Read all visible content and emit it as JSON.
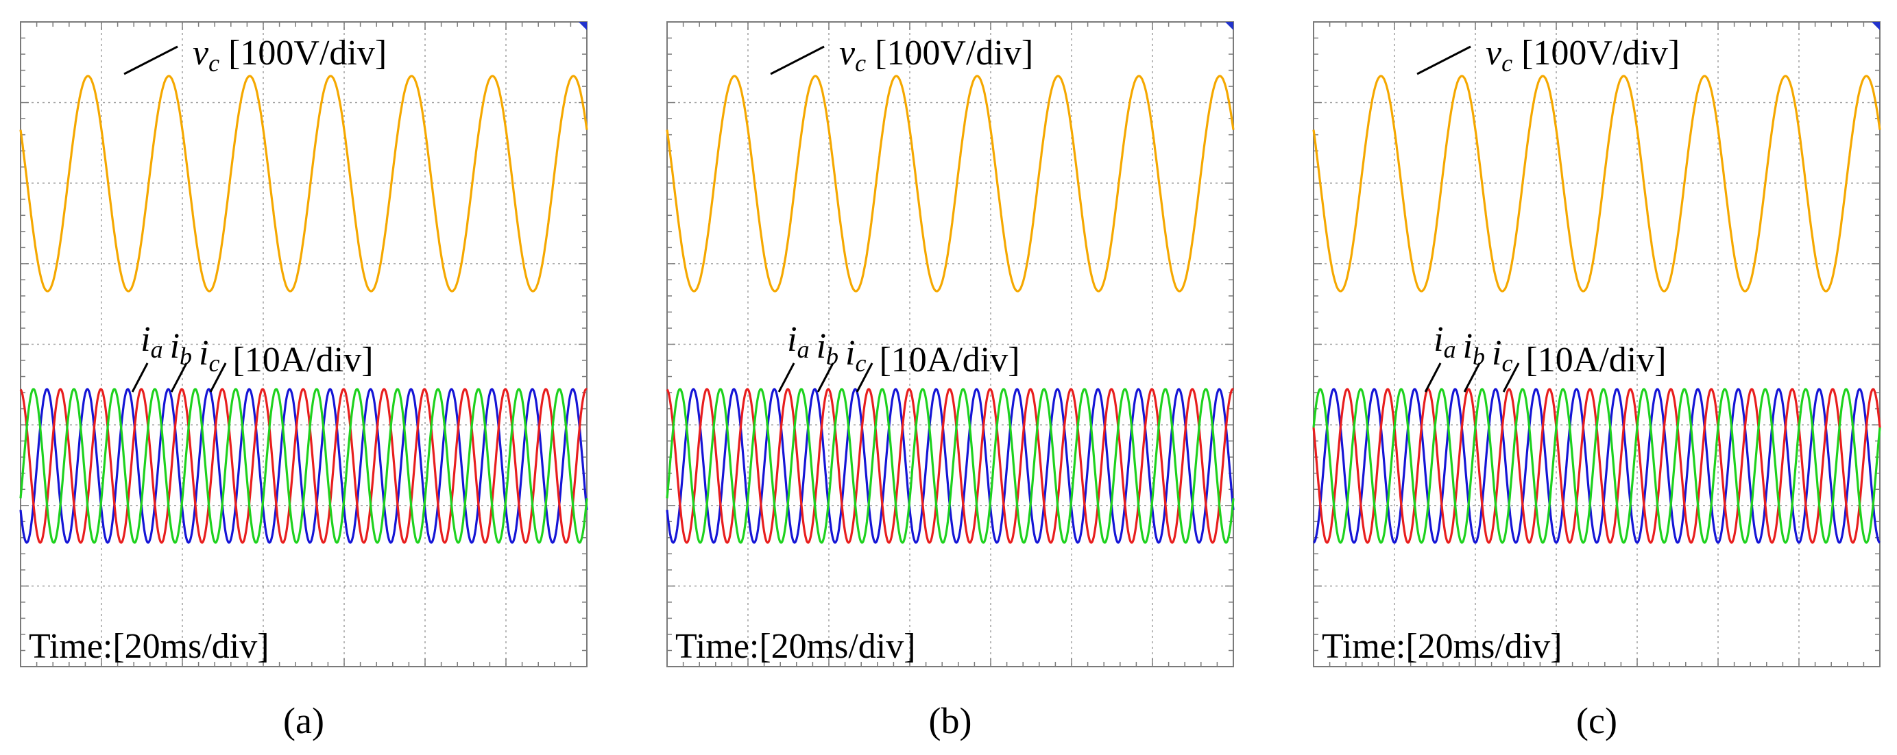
{
  "chart_data": [
    {
      "type": "line",
      "caption": "(a)",
      "time_label": "Time:[20ms/div]",
      "voltage": {
        "symbol": "v",
        "sub": "c",
        "scale": " [100V/div]",
        "color": "#F5A800",
        "cycles": 7.0,
        "phase_deg": 150
      },
      "currents": {
        "scale": " [10A/div]",
        "cycles": 14.0,
        "series": [
          {
            "symbol": "i",
            "sub": "a",
            "color": "#1515D6",
            "phase_deg": -145
          },
          {
            "symbol": "i",
            "sub": "b",
            "color": "#E81E1E",
            "phase_deg": 95
          },
          {
            "symbol": "i",
            "sub": "c",
            "color": "#1ED21E",
            "phase_deg": -25
          }
        ]
      },
      "grid": {
        "x_divisions": 7,
        "y_divisions": 8,
        "minor_ticks": 5
      }
    },
    {
      "type": "line",
      "caption": "(b)",
      "time_label": "Time:[20ms/div]",
      "voltage": {
        "symbol": "v",
        "sub": "c",
        "scale": " [100V/div]",
        "color": "#F5A800",
        "cycles": 7.0,
        "phase_deg": 150
      },
      "currents": {
        "scale": " [10A/div]",
        "cycles": 14.0,
        "series": [
          {
            "symbol": "i",
            "sub": "a",
            "color": "#1515D6",
            "phase_deg": -145
          },
          {
            "symbol": "i",
            "sub": "b",
            "color": "#E81E1E",
            "phase_deg": 95
          },
          {
            "symbol": "i",
            "sub": "c",
            "color": "#1ED21E",
            "phase_deg": -25
          }
        ]
      },
      "grid": {
        "x_divisions": 7,
        "y_divisions": 8,
        "minor_ticks": 5
      }
    },
    {
      "type": "line",
      "caption": "(c)",
      "time_label": "Time:[20ms/div]",
      "voltage": {
        "symbol": "v",
        "sub": "c",
        "scale": " [100V/div]",
        "color": "#F5A800",
        "cycles": 7.0,
        "phase_deg": 150
      },
      "currents": {
        "scale": " [10A/div]",
        "cycles": 14.0,
        "series": [
          {
            "symbol": "i",
            "sub": "a",
            "color": "#1515D6",
            "phase_deg": -90
          },
          {
            "symbol": "i",
            "sub": "b",
            "color": "#E81E1E",
            "phase_deg": 150
          },
          {
            "symbol": "i",
            "sub": "c",
            "color": "#1ED21E",
            "phase_deg": 30
          }
        ]
      },
      "grid": {
        "x_divisions": 7,
        "y_divisions": 8,
        "minor_ticks": 5
      }
    }
  ]
}
